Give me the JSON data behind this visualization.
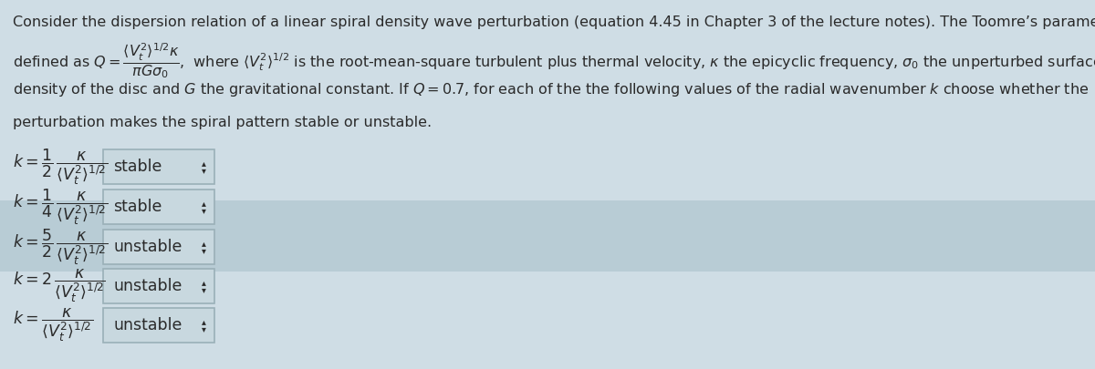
{
  "background_color": "#cfdde5",
  "highlight_color": "#b8ccd5",
  "text_color": "#2a2a2a",
  "box_face_color": "#c8d8df",
  "box_edge_color": "#9ab0b8",
  "line1": "Consider the dispersion relation of a linear spiral density wave perturbation (equation 4.45 in Chapter 3 of the lecture notes). The Toomre’s parameter is",
  "line2": "defined as $Q = \\dfrac{\\langle V_t^2 \\rangle^{1/2}\\kappa}{\\pi G\\sigma_0}$,  where $\\langle V_t^2 \\rangle^{1/2}$ is the root-mean-square turbulent plus thermal velocity, $\\kappa$ the epicyclic frequency, $\\sigma_0$ the unperturbed surface",
  "line3": "density of the disc and $G$ the gravitational constant. If $Q = 0.7$, for each of the the following values of the radial wavenumber $k$ choose whether the",
  "line4": "perturbation makes the spiral pattern stable or unstable.",
  "rows": [
    {
      "label": "$k = \\dfrac{1}{2}\\,\\dfrac{\\kappa}{\\langle V_t^2 \\rangle^{1/2}}$",
      "answer": "stable"
    },
    {
      "label": "$k = \\dfrac{1}{4}\\,\\dfrac{\\kappa}{\\langle V_t^2 \\rangle^{1/2}}$",
      "answer": "stable"
    },
    {
      "label": "$k = \\dfrac{5}{2}\\,\\dfrac{\\kappa}{\\langle V_t^2 \\rangle^{1/2}}$",
      "answer": "unstable"
    },
    {
      "label": "$k = 2\\,\\dfrac{\\kappa}{\\langle V_t^2 \\rangle^{1/2}}$",
      "answer": "unstable"
    },
    {
      "label": "$k = \\dfrac{\\kappa}{\\langle V_t^2 \\rangle^{1/2}}$",
      "answer": "unstable"
    }
  ],
  "para_fontsize": 11.5,
  "label_fontsize": 12.5,
  "answer_fontsize": 12.5
}
